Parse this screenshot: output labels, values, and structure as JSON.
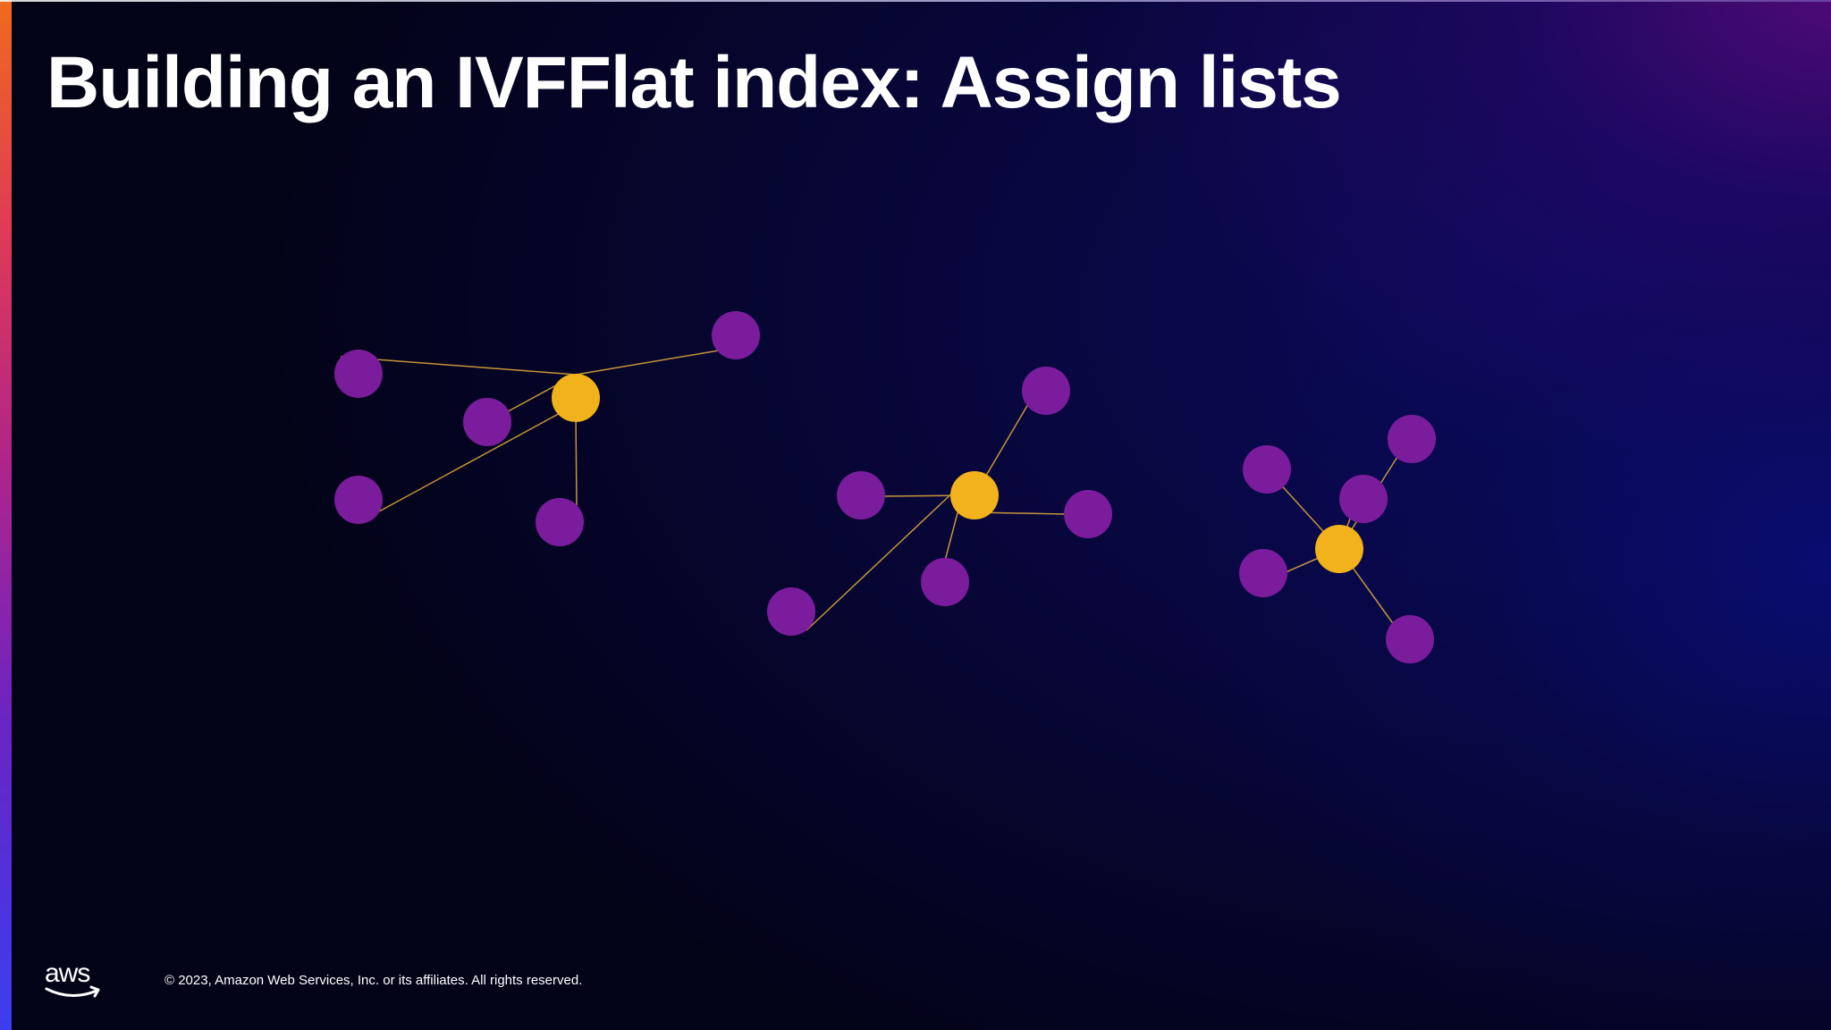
{
  "slide": {
    "title": "Building an IVFFlat index: Assign lists",
    "footer": {
      "logo_text": "aws",
      "copyright": "© 2023, Amazon Web Services, Inc. or its affiliates. All rights reserved."
    }
  },
  "colors": {
    "centroid": "#f2b21b",
    "point": "#7b1c9c",
    "link": "#d9a53a",
    "title": "#ffffff",
    "accent_bar": [
      "#f06a1c",
      "#b0248a",
      "#3b3df0"
    ]
  },
  "diagram": {
    "clusters": [
      {
        "name": "cluster-1",
        "points": 5
      },
      {
        "name": "cluster-2",
        "points": 5
      },
      {
        "name": "cluster-3",
        "points": 5
      }
    ]
  }
}
